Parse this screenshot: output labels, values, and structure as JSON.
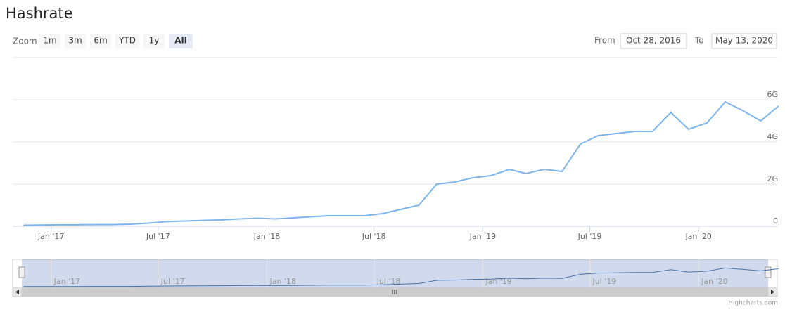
{
  "chart_data": {
    "type": "line",
    "title": "Hashrate",
    "range_selector": {
      "zoom_label": "Zoom",
      "buttons": [
        "1m",
        "3m",
        "6m",
        "YTD",
        "1y",
        "All"
      ],
      "selected": 5,
      "from_label": "From",
      "from": "Oct 28, 2016",
      "to_label": "To",
      "to": "May 13, 2020"
    },
    "x": [
      "2016-11",
      "2016-12",
      "2017-01",
      "2017-02",
      "2017-03",
      "2017-04",
      "2017-05",
      "2017-06",
      "2017-07",
      "2017-08",
      "2017-09",
      "2017-10",
      "2017-11",
      "2017-12",
      "2018-01",
      "2018-02",
      "2018-03",
      "2018-04",
      "2018-05",
      "2018-06",
      "2018-07",
      "2018-08",
      "2018-09",
      "2018-10",
      "2018-11",
      "2018-12",
      "2019-01",
      "2019-02",
      "2019-03",
      "2019-04",
      "2019-05",
      "2019-06",
      "2019-07",
      "2019-08",
      "2019-09",
      "2019-10",
      "2019-11",
      "2019-12",
      "2020-01",
      "2020-02",
      "2020-03",
      "2020-04",
      "2020-05"
    ],
    "values": [
      50000000,
      60000000,
      70000000,
      70000000,
      80000000,
      80000000,
      100000000,
      150000000,
      220000000,
      250000000,
      280000000,
      300000000,
      350000000,
      380000000,
      350000000,
      400000000,
      450000000,
      500000000,
      500000000,
      500000000,
      600000000,
      800000000,
      1000000000,
      2000000000,
      2100000000,
      2300000000,
      2400000000,
      2700000000,
      2500000000,
      2700000000,
      2600000000,
      3900000000,
      4300000000,
      4400000000,
      4500000000,
      4500000000,
      5400000000,
      4600000000,
      4900000000,
      5900000000,
      5500000000,
      5000000000,
      5700000000
    ],
    "color": "#7cb5ec",
    "xlim": [
      "2016-10-28",
      "2020-05-13"
    ],
    "xticks": [
      {
        "value": "2017-01",
        "label": "Jan '17"
      },
      {
        "value": "2017-07",
        "label": "Jul '17"
      },
      {
        "value": "2018-01",
        "label": "Jan '18"
      },
      {
        "value": "2018-07",
        "label": "Jul '18"
      },
      {
        "value": "2019-01",
        "label": "Jan '19"
      },
      {
        "value": "2019-07",
        "label": "Jul '19"
      },
      {
        "value": "2020-01",
        "label": "Jan '20"
      }
    ],
    "ylim": [
      0,
      8000000000
    ],
    "yticks": [
      {
        "value": 0,
        "label": "0"
      },
      {
        "value": 2000000000,
        "label": "2G"
      },
      {
        "value": 4000000000,
        "label": "4G"
      },
      {
        "value": 6000000000,
        "label": "6G"
      }
    ],
    "grid": true,
    "credits": "Highcharts.com"
  }
}
